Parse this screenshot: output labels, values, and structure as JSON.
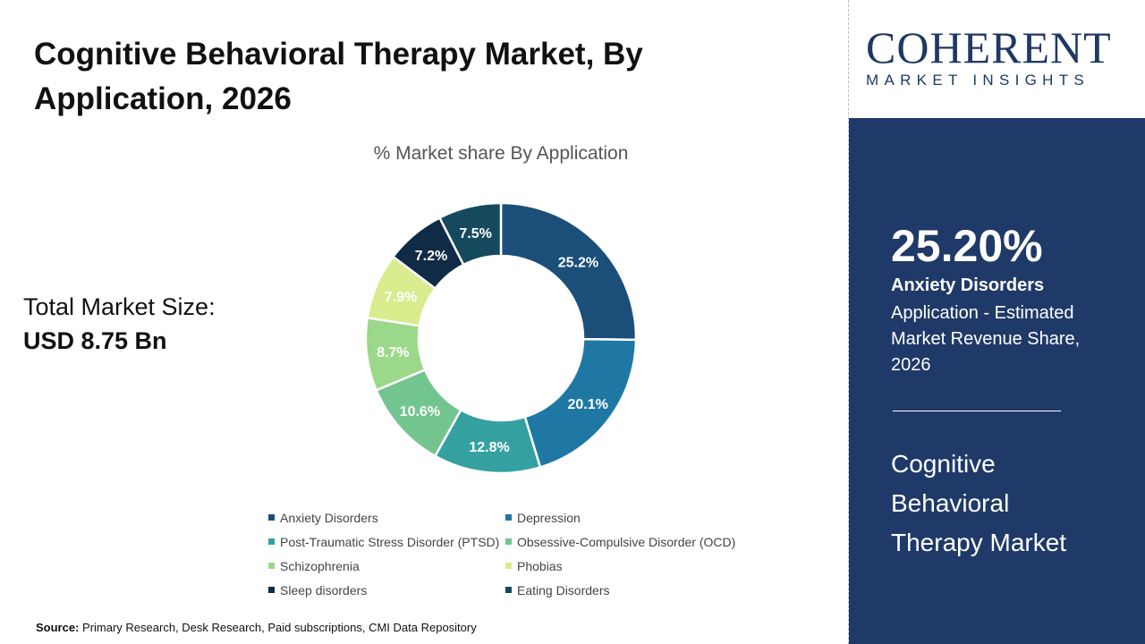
{
  "title": "Cognitive Behavioral Therapy Market, By Application, 2026",
  "total_market": {
    "label": "Total Market Size:",
    "value": "USD 8.75 Bn"
  },
  "source": {
    "label": "Source:",
    "text": " Primary Research, Desk Research, Paid subscriptions, CMI Data Repository"
  },
  "logo": {
    "main": "COHERENT",
    "sub": "MARKET INSIGHTS"
  },
  "highlight": {
    "percent": "25.20%",
    "segment": "Anxiety Disorders",
    "description": "Application - Estimated Market Revenue Share, 2026",
    "market": "Cognitive Behavioral Therapy Market"
  },
  "chart_data": {
    "type": "pie",
    "donut": true,
    "title": "% Market share By Application",
    "categories": [
      "Anxiety Disorders",
      "Depression",
      "Post-Traumatic Stress Disorder (PTSD)",
      "Obsessive-Compulsive Disorder (OCD)",
      "Schizophrenia",
      "Phobias",
      "Sleep disorders",
      "Eating Disorders"
    ],
    "values": [
      25.2,
      20.1,
      12.8,
      10.6,
      8.7,
      7.9,
      7.2,
      7.5
    ],
    "labels": [
      "25.2%",
      "20.1%",
      "12.8%",
      "10.6%",
      "8.7%",
      "7.9%",
      "7.2%",
      "7.5%"
    ],
    "colors": [
      "#1b4f7a",
      "#1f78a4",
      "#35a0a0",
      "#72c58f",
      "#9bd88a",
      "#d9ec8e",
      "#0f2b45",
      "#154a5e"
    ],
    "legend_position": "bottom"
  }
}
